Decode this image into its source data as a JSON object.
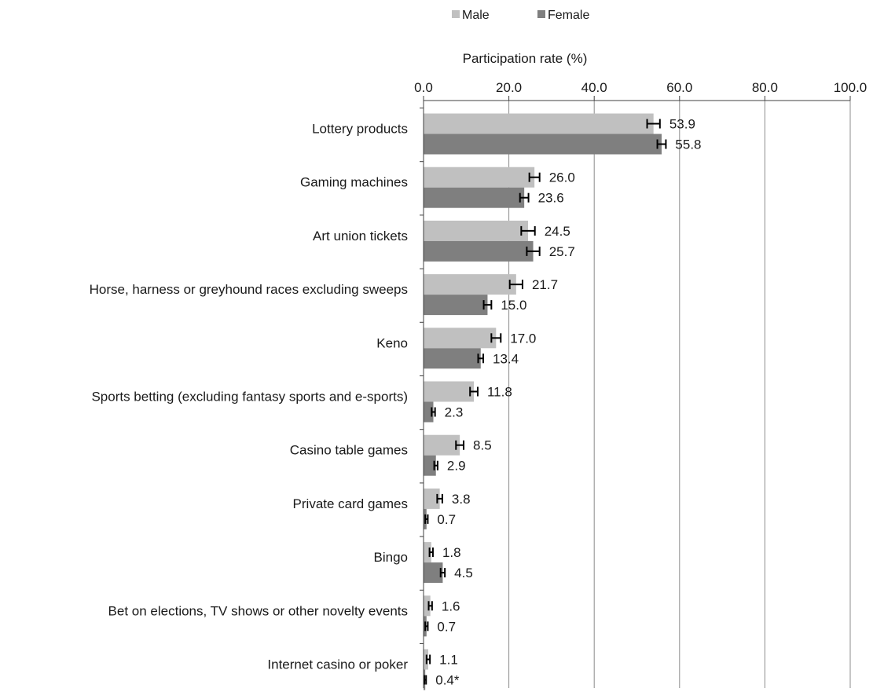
{
  "chart_data": {
    "type": "bar",
    "orientation": "horizontal",
    "xlabel": "Participation rate (%)",
    "xlim": [
      0,
      100
    ],
    "xticks": [
      "0.0",
      "20.0",
      "40.0",
      "60.0",
      "80.0",
      "100.0"
    ],
    "grid": true,
    "legend_position": "top",
    "categories": [
      "Lottery products",
      "Gaming machines",
      "Art union tickets",
      "Horse, harness or greyhound races excluding sweeps",
      "Keno",
      "Sports betting (excluding fantasy sports and e-sports)",
      "Casino table games",
      "Private card games",
      "Bingo",
      "Bet on elections, TV shows or other novelty events",
      "Internet casino or poker"
    ],
    "series": [
      {
        "name": "Male",
        "color": "#c0c0c0",
        "values": [
          53.9,
          26.0,
          24.5,
          21.7,
          17.0,
          11.8,
          8.5,
          3.8,
          1.8,
          1.6,
          1.1
        ],
        "labels": [
          "53.9",
          "26.0",
          "24.5",
          "21.7",
          "17.0",
          "11.8",
          "8.5",
          "3.8",
          "1.8",
          "1.6",
          "1.1"
        ],
        "error_half_width": [
          1.5,
          1.2,
          1.6,
          1.5,
          1.1,
          0.9,
          0.9,
          0.6,
          0.4,
          0.4,
          0.4
        ]
      },
      {
        "name": "Female",
        "color": "#7f7f7f",
        "values": [
          55.8,
          23.6,
          25.7,
          15.0,
          13.4,
          2.3,
          2.9,
          0.7,
          4.5,
          0.7,
          0.4
        ],
        "labels": [
          "55.8",
          "23.6",
          "25.7",
          "15.0",
          "13.4",
          "2.3",
          "2.9",
          "0.7",
          "4.5",
          "0.7",
          "0.4*"
        ],
        "error_half_width": [
          1.0,
          1.0,
          1.5,
          0.9,
          0.6,
          0.4,
          0.4,
          0.3,
          0.5,
          0.3,
          0.2
        ]
      }
    ]
  }
}
